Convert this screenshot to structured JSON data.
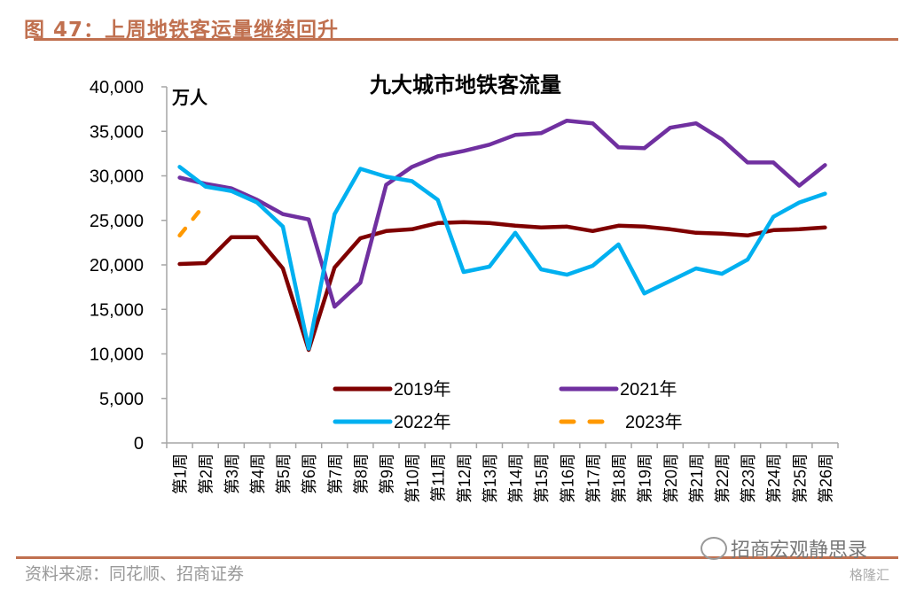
{
  "figure": {
    "title": "图 47：上周地铁客运量继续回升",
    "source": "资料来源：同花顺、招商证券",
    "watermark": "招商宏观静思录",
    "watermark2": "格隆汇"
  },
  "chart_data": {
    "type": "line",
    "title": "九大城市地铁客流量",
    "ylabel": "万人",
    "xlabel": "",
    "ylim": [
      0,
      40000
    ],
    "yticks": [
      0,
      5000,
      10000,
      15000,
      20000,
      25000,
      30000,
      35000,
      40000
    ],
    "ytick_labels": [
      "0",
      "5,000",
      "10,000",
      "15,000",
      "20,000",
      "25,000",
      "30,000",
      "35,000",
      "40,000"
    ],
    "grid": false,
    "legend_position": "bottom-center-inside",
    "categories": [
      "第1周",
      "第2周",
      "第3周",
      "第4周",
      "第5周",
      "第6周",
      "第7周",
      "第8周",
      "第9周",
      "第10周",
      "第11周",
      "第12周",
      "第13周",
      "第14周",
      "第15周",
      "第16周",
      "第17周",
      "第18周",
      "第19周",
      "第20周",
      "第21周",
      "第22周",
      "第23周",
      "第24周",
      "第25周",
      "第26周"
    ],
    "series": [
      {
        "name": "2019年",
        "color": "#7f0000",
        "dash": false,
        "values": [
          20100,
          20200,
          23100,
          23100,
          19600,
          10450,
          19700,
          23000,
          23800,
          24000,
          24700,
          24800,
          24700,
          24400,
          24200,
          24300,
          23800,
          24400,
          24300,
          24000,
          23600,
          23500,
          23300,
          23900,
          24000,
          24200
        ]
      },
      {
        "name": "2021年",
        "color": "#7030a0",
        "dash": false,
        "values": [
          29800,
          29100,
          28600,
          27300,
          25700,
          25100,
          15300,
          18000,
          29000,
          31000,
          32200,
          32800,
          33500,
          34600,
          34800,
          36200,
          35900,
          33200,
          33100,
          35400,
          35900,
          34100,
          31500,
          31500,
          28900,
          31200
        ]
      },
      {
        "name": "2022年",
        "color": "#00b0f0",
        "dash": false,
        "values": [
          31000,
          28800,
          28300,
          27000,
          24300,
          10600,
          25700,
          30800,
          29900,
          29400,
          27300,
          19200,
          19800,
          23600,
          19500,
          18900,
          19900,
          22300,
          16800,
          18200,
          19600,
          19000,
          20600,
          25400,
          27000,
          28000
        ]
      },
      {
        "name": "2023年",
        "color": "#ff9900",
        "dash": true,
        "values": [
          23300,
          26900
        ]
      }
    ]
  }
}
